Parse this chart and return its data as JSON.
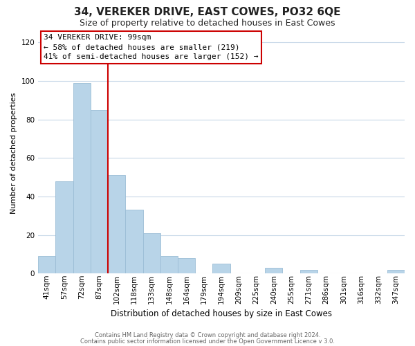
{
  "title": "34, VEREKER DRIVE, EAST COWES, PO32 6QE",
  "subtitle": "Size of property relative to detached houses in East Cowes",
  "xlabel": "Distribution of detached houses by size in East Cowes",
  "ylabel": "Number of detached properties",
  "footer_line1": "Contains HM Land Registry data © Crown copyright and database right 2024.",
  "footer_line2": "Contains public sector information licensed under the Open Government Licence v 3.0.",
  "annotation_title": "34 VEREKER DRIVE: 99sqm",
  "annotation_line2": "← 58% of detached houses are smaller (219)",
  "annotation_line3": "41% of semi-detached houses are larger (152) →",
  "bar_labels": [
    "41sqm",
    "57sqm",
    "72sqm",
    "87sqm",
    "102sqm",
    "118sqm",
    "133sqm",
    "148sqm",
    "164sqm",
    "179sqm",
    "194sqm",
    "209sqm",
    "225sqm",
    "240sqm",
    "255sqm",
    "271sqm",
    "286sqm",
    "301sqm",
    "316sqm",
    "332sqm",
    "347sqm"
  ],
  "bar_heights": [
    9,
    48,
    99,
    85,
    51,
    33,
    21,
    9,
    8,
    0,
    5,
    0,
    0,
    3,
    0,
    2,
    0,
    0,
    0,
    0,
    2
  ],
  "bar_color": "#b8d4e8",
  "bar_edge_color": "#9bbdd6",
  "reference_line_x": 4,
  "reference_line_color": "#cc0000",
  "ylim": [
    0,
    125
  ],
  "yticks": [
    0,
    20,
    40,
    60,
    80,
    100,
    120
  ],
  "bg_color": "#ffffff",
  "plot_bg_color": "#ffffff",
  "grid_color": "#c8d8e8",
  "annotation_box_color": "#ffffff",
  "annotation_box_edge": "#cc0000",
  "title_fontsize": 11,
  "subtitle_fontsize": 9,
  "ylabel_fontsize": 8,
  "xlabel_fontsize": 8.5,
  "tick_fontsize": 7.5,
  "footer_fontsize": 6,
  "annotation_fontsize": 8
}
